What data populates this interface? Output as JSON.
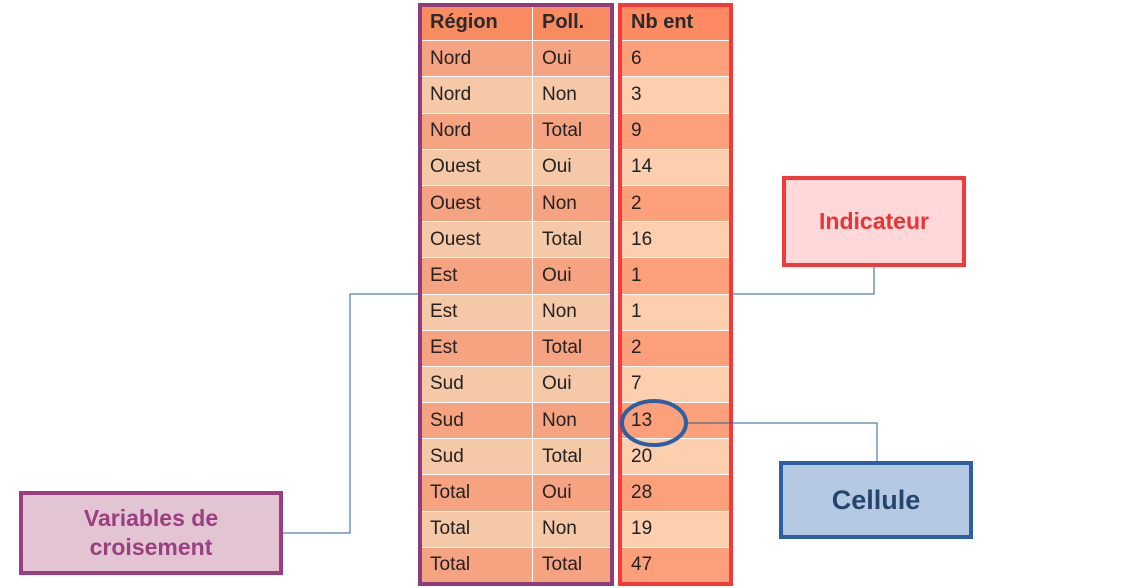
{
  "table": {
    "headers": [
      "Région",
      "Poll.",
      "Nb ent"
    ],
    "rows": [
      [
        "Nord",
        "Oui",
        "6"
      ],
      [
        "Nord",
        "Non",
        "3"
      ],
      [
        "Nord",
        "Total",
        "9"
      ],
      [
        "Ouest",
        "Oui",
        "14"
      ],
      [
        "Ouest",
        "Non",
        "2"
      ],
      [
        "Ouest",
        "Total",
        "16"
      ],
      [
        "Est",
        "Oui",
        "1"
      ],
      [
        "Est",
        "Non",
        "1"
      ],
      [
        "Est",
        "Total",
        "2"
      ],
      [
        "Sud",
        "Oui",
        "7"
      ],
      [
        "Sud",
        "Non",
        "13"
      ],
      [
        "Sud",
        "Total",
        "20"
      ],
      [
        "Total",
        "Oui",
        "28"
      ],
      [
        "Total",
        "Non",
        "19"
      ],
      [
        "Total",
        "Total",
        "47"
      ]
    ]
  },
  "labels": {
    "indicateur": "Indicateur",
    "cellule": "Cellule",
    "variables": "Variables de\ncroisement"
  },
  "colors": {
    "header": "#f98b60",
    "row_dark": "#f6a381",
    "row_light": "#f5c8a8",
    "indicator_header": "#fd8a62",
    "indicator_dark": "#fca07b",
    "indicator_light": "#fdcfae",
    "vars_frame": "#8e3d7c",
    "indicator_frame": "#f13b3b",
    "cell_frame": "#2e5fa3"
  }
}
